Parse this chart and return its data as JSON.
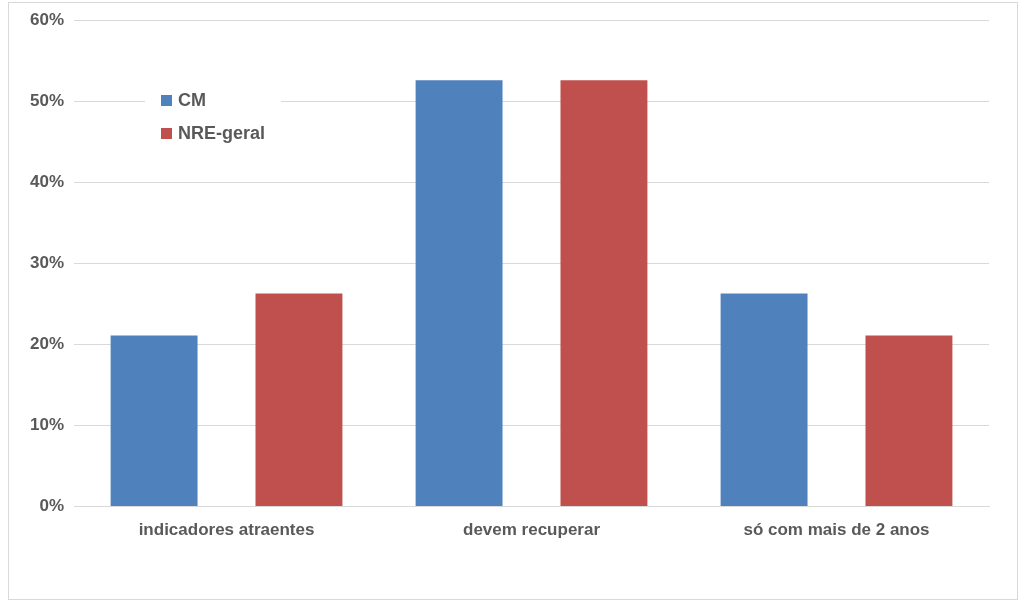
{
  "chart_data": {
    "type": "bar",
    "categories": [
      "indicadores atraentes",
      "devem recuperar",
      "só com mais de 2 anos"
    ],
    "series": [
      {
        "name": "CM",
        "color": "#4f81bd",
        "values": [
          21.1,
          52.6,
          26.3
        ]
      },
      {
        "name": "NRE-geral",
        "color": "#c0504d",
        "values": [
          26.3,
          52.6,
          21.1
        ]
      }
    ],
    "ylim": [
      0,
      60
    ],
    "yticks": [
      {
        "value": 0,
        "label": "0%"
      },
      {
        "value": 10,
        "label": "10%"
      },
      {
        "value": 20,
        "label": "20%"
      },
      {
        "value": 30,
        "label": "30%"
      },
      {
        "value": 40,
        "label": "40%"
      },
      {
        "value": 50,
        "label": "50%"
      },
      {
        "value": 60,
        "label": "60%"
      }
    ],
    "grid": "y",
    "legend": "top left"
  }
}
